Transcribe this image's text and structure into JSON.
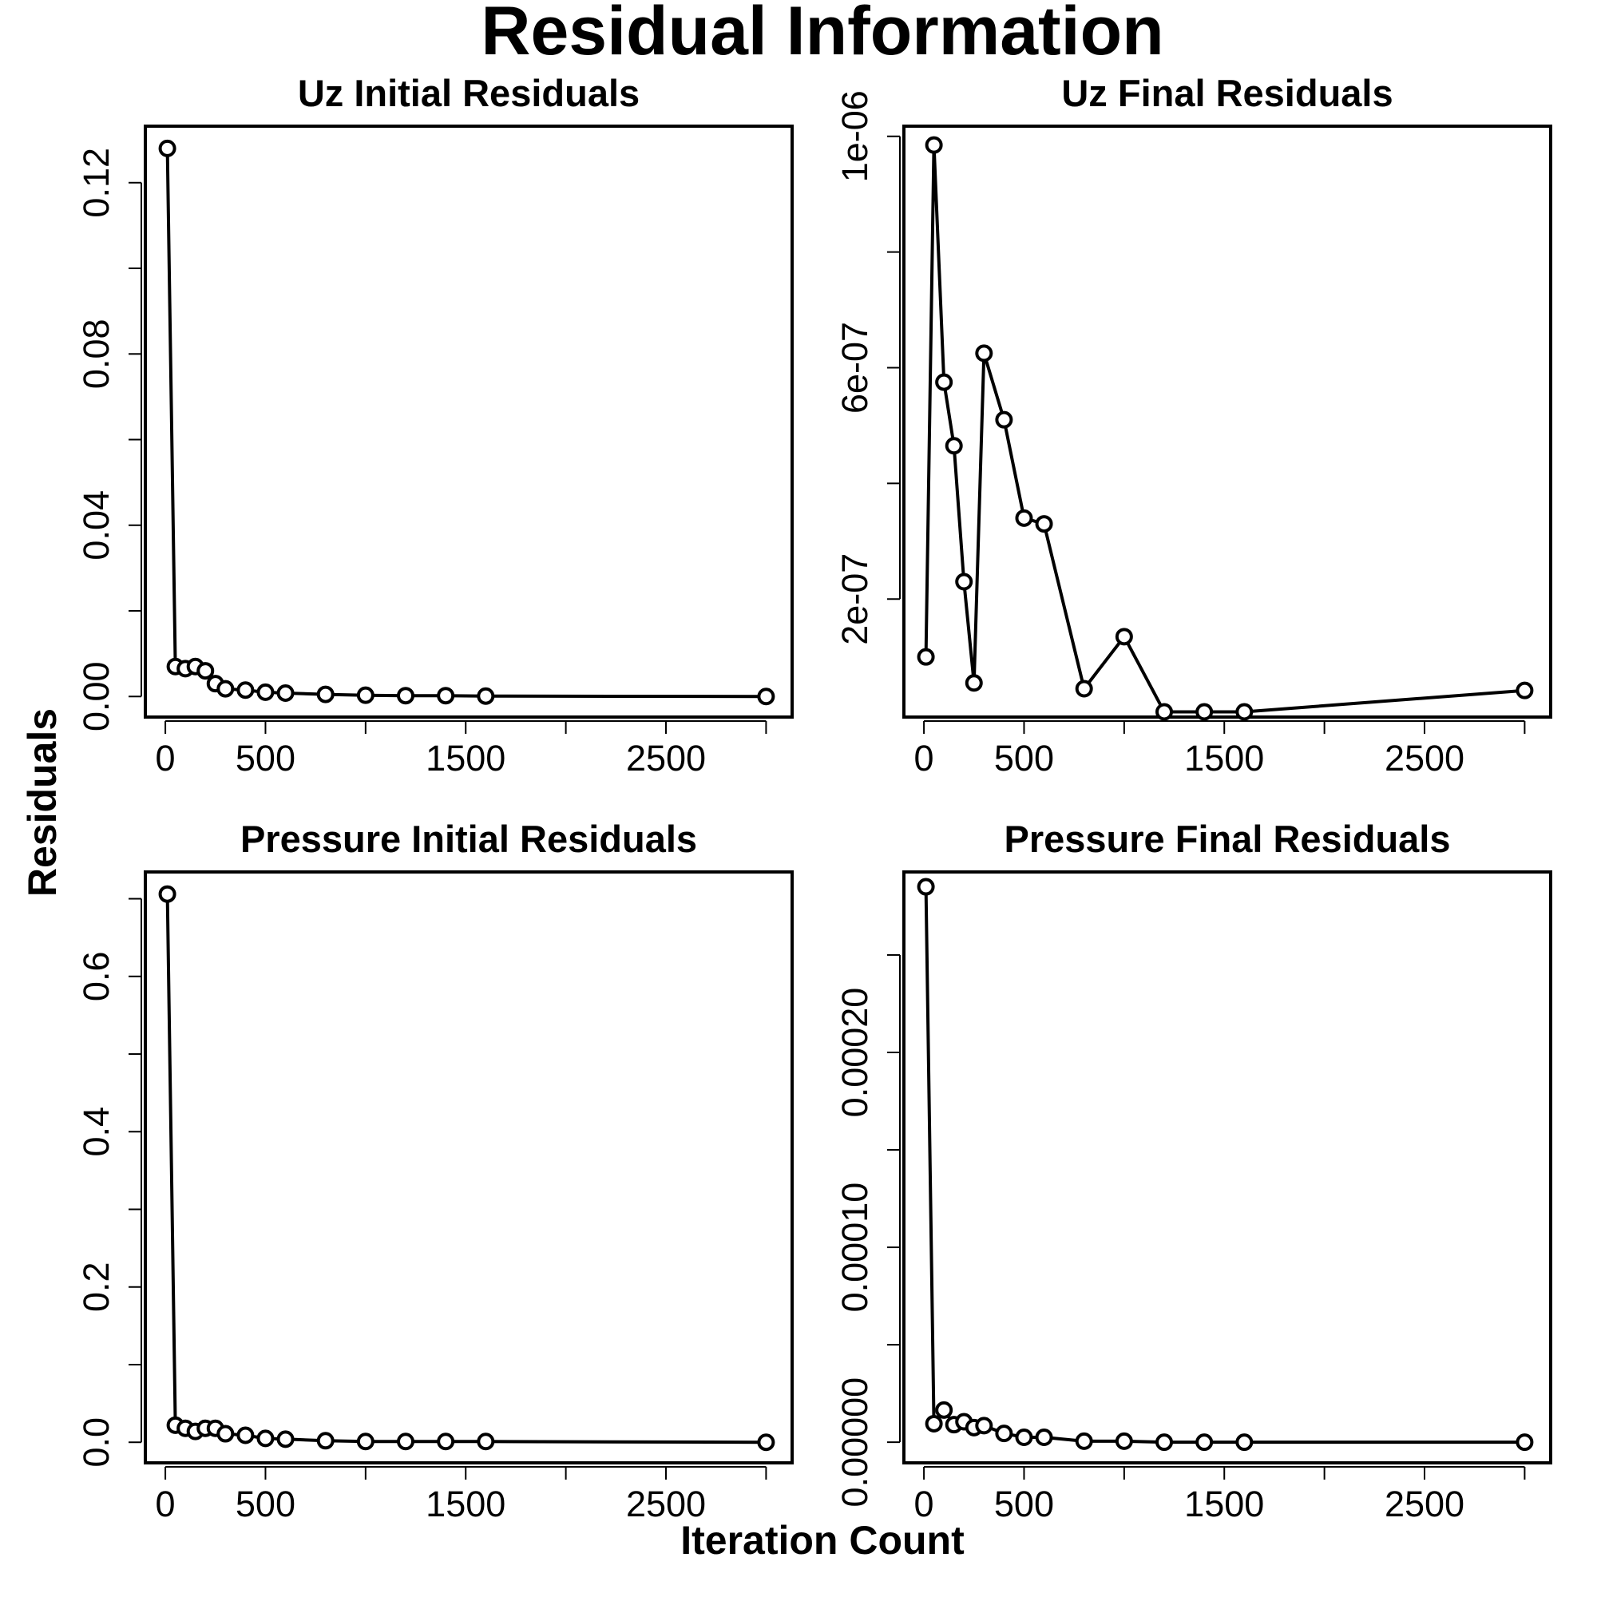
{
  "title": "Residual Information",
  "ylabel": "Residuals",
  "xlabel": "Iteration Count",
  "colors": {
    "line": "#000000",
    "background": "#ffffff"
  },
  "chart_data": [
    {
      "type": "line",
      "title": "Uz Initial Residuals",
      "xlim": [
        -100,
        3130
      ],
      "ylim": [
        -0.0048,
        0.1332
      ],
      "x_ticks": [
        0,
        500,
        1000,
        1500,
        2000,
        2500,
        3000
      ],
      "x_tick_labels": [
        "0",
        "500",
        "",
        "1500",
        "",
        "2500",
        ""
      ],
      "y_ticks": [
        0,
        0.02,
        0.04,
        0.06,
        0.08,
        0.1,
        0.12
      ],
      "y_tick_labels": [
        "0.00",
        "",
        "0.04",
        "",
        "0.08",
        "",
        "0.12"
      ],
      "series": [
        {
          "x": [
            10,
            50,
            100,
            150,
            200,
            250,
            300,
            400,
            500,
            600,
            800,
            1000,
            1200,
            1400,
            1600,
            3000
          ],
          "y": [
            0.128,
            0.007,
            0.0065,
            0.007,
            0.006,
            0.003,
            0.0018,
            0.0015,
            0.001,
            0.0008,
            0.0005,
            0.0003,
            0.0002,
            0.0002,
            0.0001,
            0.0
          ]
        }
      ]
    },
    {
      "type": "line",
      "title": "Uz Final Residuals",
      "xlim": [
        -100,
        3130
      ],
      "ylim": [
        -4e-09,
        1.0176e-06
      ],
      "x_ticks": [
        0,
        500,
        1000,
        1500,
        2000,
        2500,
        3000
      ],
      "x_tick_labels": [
        "0",
        "500",
        "",
        "1500",
        "",
        "2500",
        ""
      ],
      "y_ticks": [
        2e-07,
        4e-07,
        6e-07,
        8e-07,
        1e-06
      ],
      "y_tick_labels": [
        "2e-07",
        "",
        "6e-07",
        "",
        "1e-06"
      ],
      "series": [
        {
          "x": [
            10,
            50,
            100,
            150,
            200,
            250,
            300,
            400,
            500,
            600,
            800,
            1000,
            1200,
            1400,
            1600,
            3000
          ],
          "y": [
            1e-07,
            9.85e-07,
            5.75e-07,
            4.65e-07,
            2.3e-07,
            5.5e-08,
            6.25e-07,
            5.1e-07,
            3.4e-07,
            3.3e-07,
            4.5e-08,
            1.35e-07,
            5e-09,
            5e-09,
            5e-09,
            4.2e-08
          ]
        }
      ]
    },
    {
      "type": "line",
      "title": "Pressure Initial Residuals",
      "xlim": [
        -100,
        3130
      ],
      "ylim": [
        -0.0265,
        0.7345
      ],
      "x_ticks": [
        0,
        500,
        1000,
        1500,
        2000,
        2500,
        3000
      ],
      "x_tick_labels": [
        "0",
        "500",
        "",
        "1500",
        "",
        "2500",
        ""
      ],
      "y_ticks": [
        0,
        0.1,
        0.2,
        0.3,
        0.4,
        0.5,
        0.6,
        0.7
      ],
      "y_tick_labels": [
        "0.0",
        "",
        "0.2",
        "",
        "0.4",
        "",
        "0.6",
        ""
      ],
      "series": [
        {
          "x": [
            10,
            50,
            100,
            150,
            200,
            250,
            300,
            400,
            500,
            600,
            800,
            1000,
            1200,
            1400,
            1600,
            3000
          ],
          "y": [
            0.706,
            0.022,
            0.018,
            0.014,
            0.018,
            0.018,
            0.011,
            0.009,
            0.005,
            0.004,
            0.002,
            0.001,
            0.001,
            0.001,
            0.001,
            0.0
          ]
        }
      ]
    },
    {
      "type": "line",
      "title": "Pressure Final Residuals",
      "xlim": [
        -100,
        3130
      ],
      "ylim": [
        -1.06e-05,
        0.0002926
      ],
      "x_ticks": [
        0,
        500,
        1000,
        1500,
        2000,
        2500,
        3000
      ],
      "x_tick_labels": [
        "0",
        "500",
        "",
        "1500",
        "",
        "2500",
        ""
      ],
      "y_ticks": [
        0,
        5e-05,
        0.0001,
        0.00015,
        0.0002,
        0.00025
      ],
      "y_tick_labels": [
        "0.00000",
        "",
        "0.00010",
        "",
        "0.00020",
        ""
      ],
      "series": [
        {
          "x": [
            10,
            50,
            100,
            150,
            200,
            250,
            300,
            400,
            500,
            600,
            800,
            1000,
            1200,
            1400,
            1600,
            3000
          ],
          "y": [
            0.000285,
            9.5e-06,
            1.65e-05,
            9e-06,
            1.05e-05,
            7.5e-06,
            8.5e-06,
            4.5e-06,
            2.5e-06,
            2.5e-06,
            5e-07,
            5e-07,
            0.0,
            0.0,
            0.0,
            0.0
          ]
        }
      ]
    }
  ]
}
